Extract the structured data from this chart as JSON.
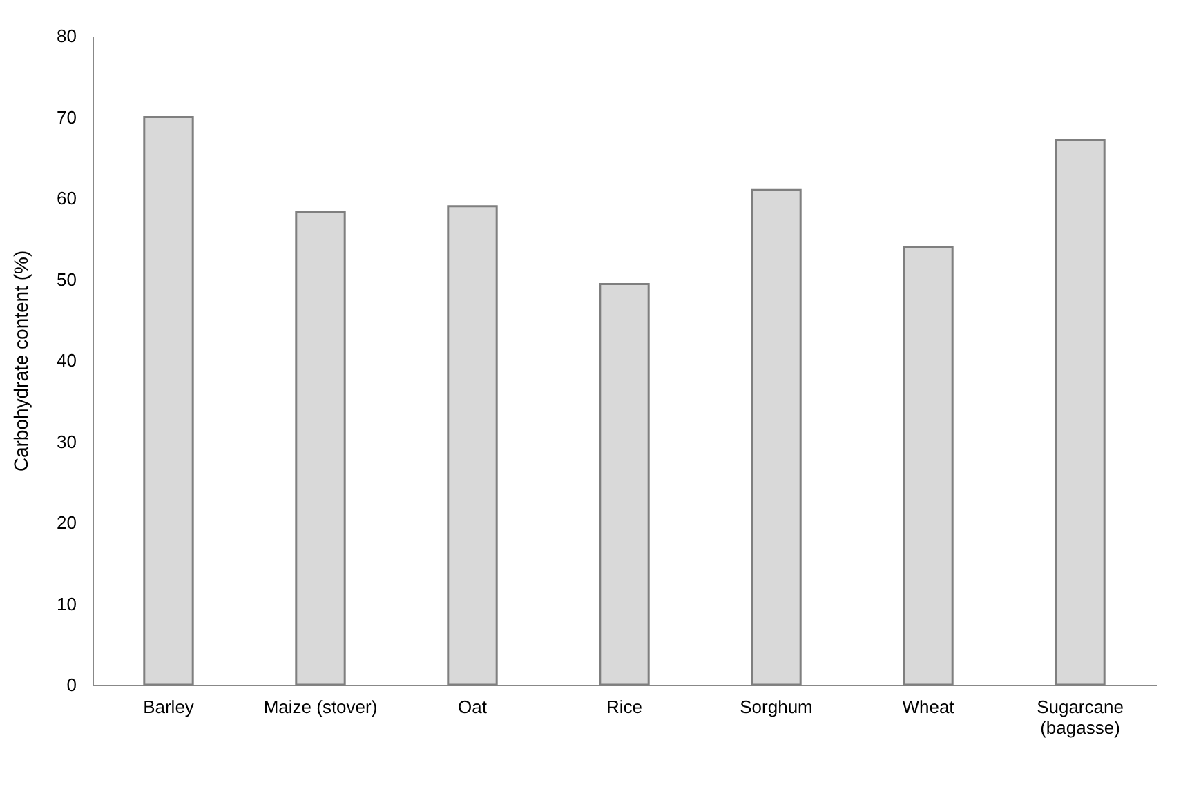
{
  "chart_data": {
    "type": "bar",
    "ylabel": "Carbohydrate content (%)",
    "categories": [
      "Barley",
      "Maize (stover)",
      "Oat",
      "Rice",
      "Sorghum",
      "Wheat",
      "Sugarcane\n(bagasse)"
    ],
    "values": [
      70,
      58.3,
      59,
      49.4,
      61,
      54,
      67.2
    ],
    "color": "#d9d9d9",
    "ylim": [
      0,
      80
    ],
    "yticks": [
      0,
      10,
      20,
      30,
      40,
      50,
      60,
      70,
      80
    ],
    "grid": false
  }
}
